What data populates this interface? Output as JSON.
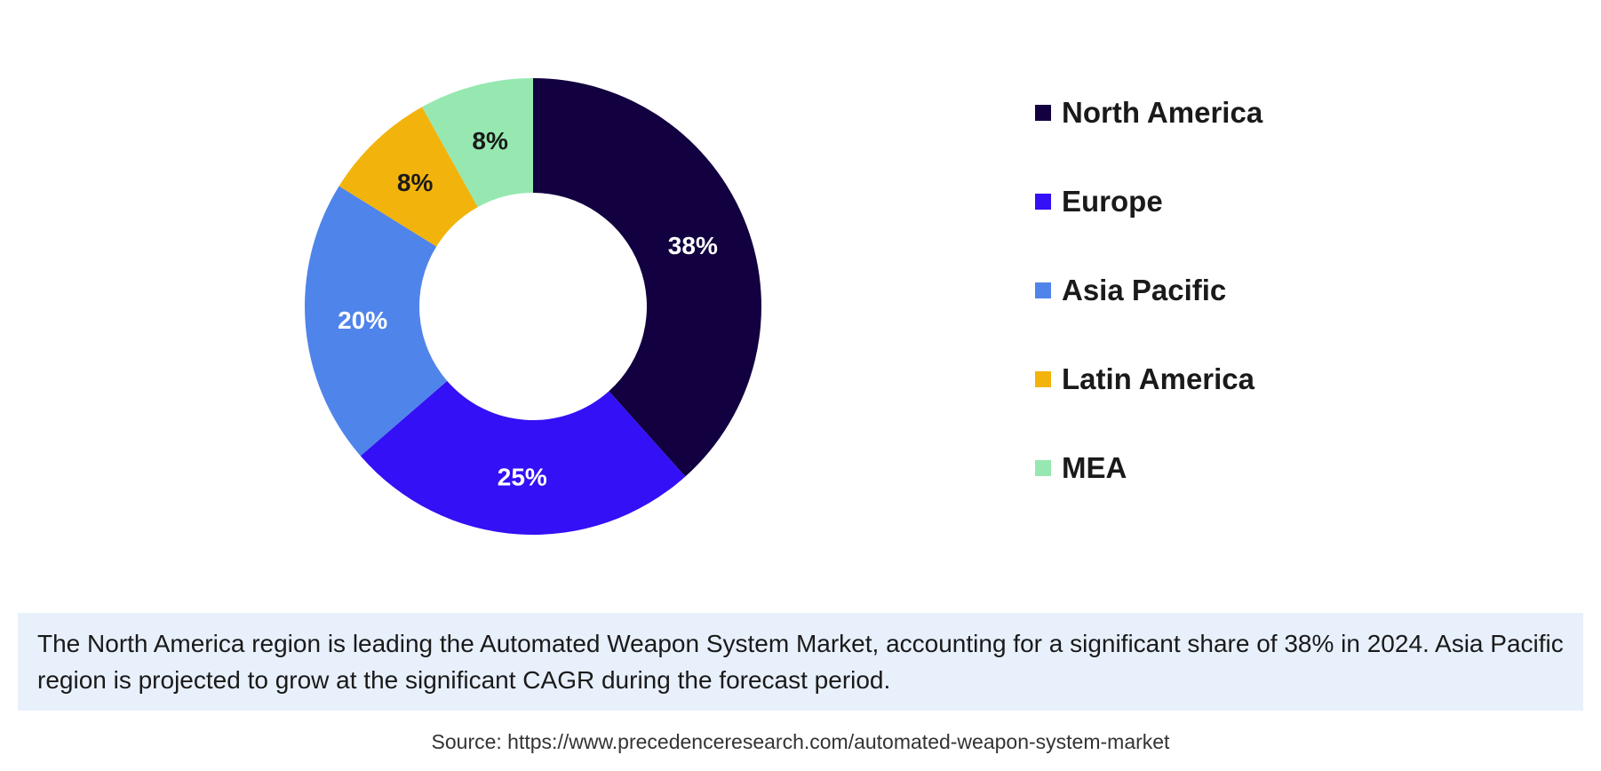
{
  "chart_data": {
    "type": "pie",
    "donut": true,
    "categories": [
      "North America",
      "Europe",
      "Asia Pacific",
      "Latin America",
      "MEA"
    ],
    "values": [
      38,
      25,
      20,
      8,
      8
    ],
    "labels": [
      "38%",
      "25%",
      "20%",
      "8%",
      "8%"
    ],
    "colors": [
      "#120040",
      "#3310f5",
      "#4f84ea",
      "#f2b30c",
      "#96e8b0"
    ],
    "label_colors": [
      "#ffffff",
      "#ffffff",
      "#ffffff",
      "#1a1a1a",
      "#1a1a1a"
    ],
    "legend": [
      "North America",
      "Europe",
      "Asia Pacific",
      "Latin America",
      "MEA"
    ],
    "legend_position": "right",
    "title": ""
  },
  "description": "The North America region is leading the Automated Weapon System Market, accounting for a significant share of 38% in 2024. Asia Pacific region is projected to grow at the significant CAGR during the forecast period.",
  "source": "Source: https://www.precedenceresearch.com/automated-weapon-system-market"
}
